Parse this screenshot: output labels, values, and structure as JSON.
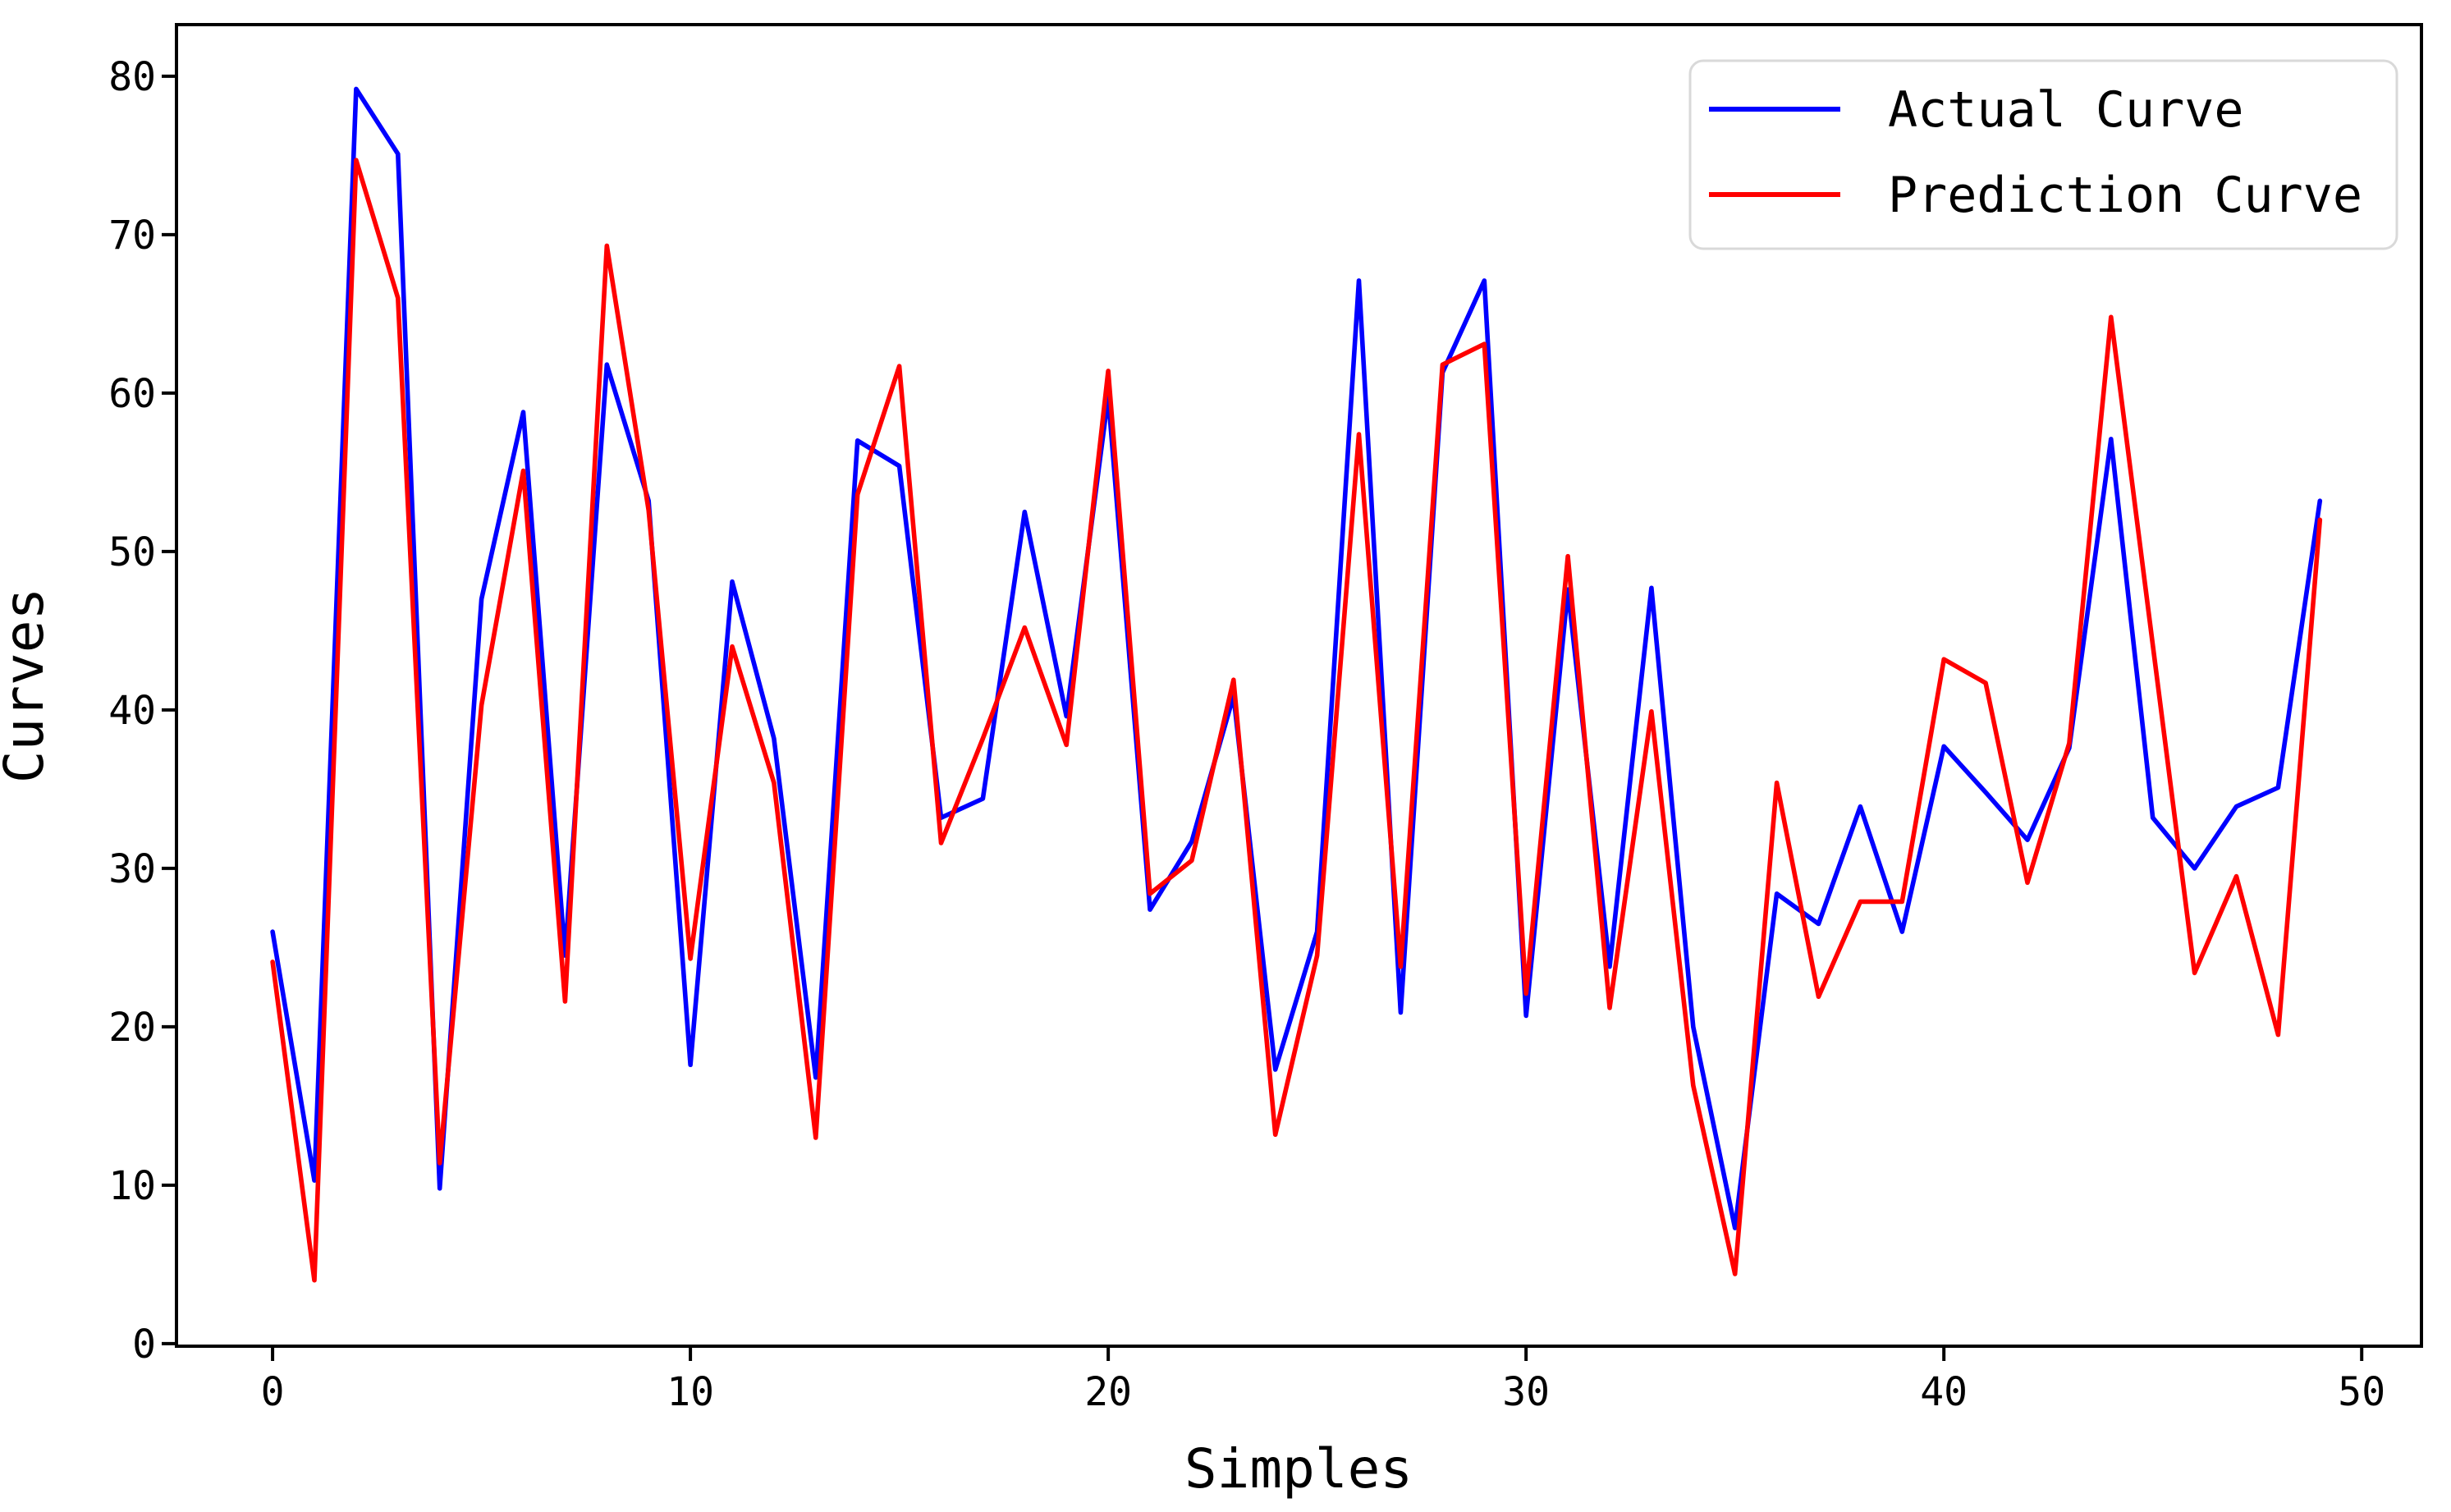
{
  "figure": {
    "background": "#ffffff",
    "spine_color": "#000000",
    "text_color": "#000000"
  },
  "chart_data": {
    "type": "line",
    "title": "",
    "xlabel": "Simples",
    "ylabel": "Curves",
    "x": [
      0,
      1,
      2,
      3,
      4,
      5,
      6,
      7,
      8,
      9,
      10,
      11,
      12,
      13,
      14,
      15,
      16,
      17,
      18,
      19,
      20,
      21,
      22,
      23,
      24,
      25,
      26,
      27,
      28,
      29,
      30,
      31,
      32,
      33,
      34,
      35,
      36,
      37,
      38,
      39,
      40,
      41,
      42,
      43,
      44,
      45,
      46,
      47,
      48,
      49
    ],
    "series": [
      {
        "name": "Actual Curve",
        "color": "#0000ff",
        "values": [
          26.0,
          10.3,
          79.2,
          75.1,
          9.8,
          47.0,
          58.8,
          24.5,
          61.8,
          53.2,
          17.6,
          48.1,
          38.2,
          16.8,
          57.0,
          55.4,
          33.2,
          34.4,
          52.5,
          39.6,
          59.8,
          27.4,
          31.7,
          40.9,
          17.3,
          26.0,
          67.1,
          20.9,
          61.3,
          67.1,
          20.7,
          47.6,
          23.8,
          47.7,
          20.0,
          7.3,
          28.4,
          26.5,
          33.9,
          26.0,
          37.7,
          34.8,
          31.8,
          37.6,
          57.1,
          33.2,
          30.0,
          33.9,
          35.1,
          53.2
        ]
      },
      {
        "name": "Prediction Curve",
        "color": "#ff0000",
        "values": [
          24.1,
          4.0,
          74.7,
          66.0,
          11.4,
          40.3,
          55.1,
          21.6,
          69.3,
          52.6,
          24.3,
          44.0,
          35.4,
          13.0,
          53.6,
          61.7,
          31.6,
          38.2,
          45.2,
          37.8,
          61.4,
          28.4,
          30.5,
          41.9,
          13.2,
          24.5,
          57.4,
          23.8,
          61.8,
          63.1,
          22.1,
          49.7,
          21.2,
          39.9,
          16.3,
          4.4,
          35.4,
          21.9,
          27.9,
          27.9,
          43.2,
          41.7,
          29.1,
          37.9,
          64.8,
          44.1,
          23.4,
          29.5,
          19.5,
          52.0
        ]
      }
    ],
    "xlim": [
      -2.3,
      51.43
    ],
    "ylim": [
      -0.16,
      83.26
    ],
    "xticks": [
      0,
      10,
      20,
      30,
      40,
      50
    ],
    "yticks": [
      0,
      10,
      20,
      30,
      40,
      50,
      60,
      70,
      80
    ],
    "grid": false,
    "legend": {
      "position": "upper right",
      "entries": [
        "Actual Curve",
        "Prediction Curve"
      ]
    }
  }
}
